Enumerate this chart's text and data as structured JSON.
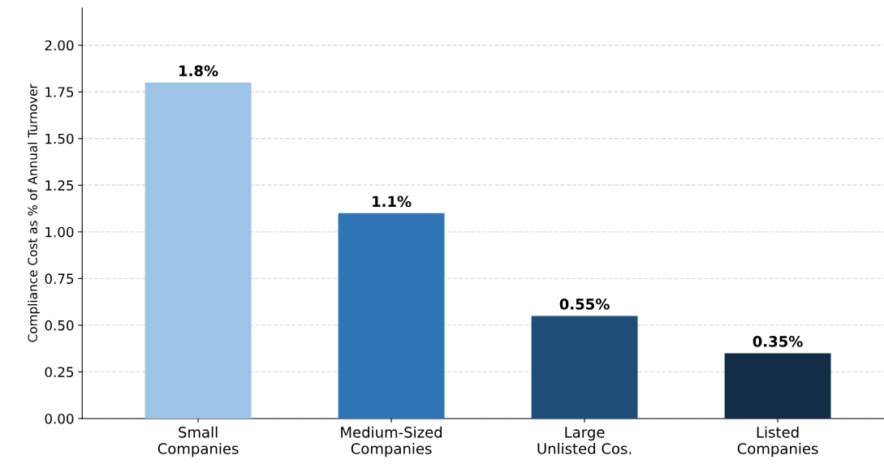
{
  "chart_data": {
    "type": "bar",
    "ylabel": "Compliance Cost as % of Annual Turnover",
    "categories": [
      "Small\nCompanies",
      "Medium-Sized\nCompanies",
      "Large\nUnlisted Cos.",
      "Listed\nCompanies"
    ],
    "values": [
      1.8,
      1.1,
      0.55,
      0.35
    ],
    "value_labels": [
      "1.8%",
      "1.1%",
      "0.55%",
      "0.35%"
    ],
    "colors": [
      "#9dc3e6",
      "#2e75b6",
      "#1f4e79",
      "#132d46"
    ],
    "ylim": [
      0,
      2.2
    ],
    "yticks": [
      "0.00",
      "0.25",
      "0.50",
      "0.75",
      "1.00",
      "1.25",
      "1.50",
      "1.75",
      "2.00"
    ],
    "grid": "y"
  }
}
